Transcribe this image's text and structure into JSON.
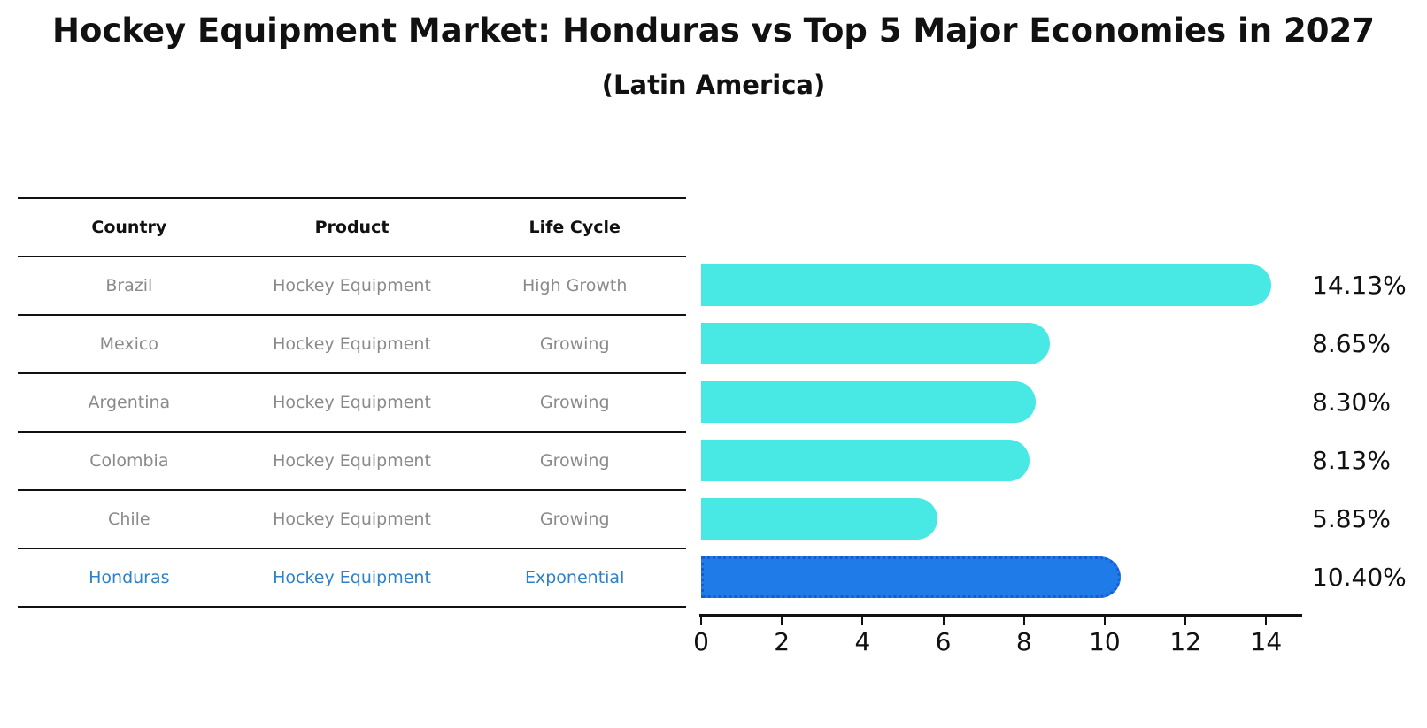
{
  "title": "Hockey Equipment Market: Honduras vs Top 5 Major Economies in 2027",
  "subtitle": "(Latin America)",
  "table": {
    "headers": {
      "country": "Country",
      "product": "Product",
      "life_cycle": "Life Cycle"
    },
    "rows": [
      {
        "country": "Brazil",
        "product": "Hockey Equipment",
        "life_cycle": "High Growth",
        "highlight": false
      },
      {
        "country": "Mexico",
        "product": "Hockey Equipment",
        "life_cycle": "Growing",
        "highlight": false
      },
      {
        "country": "Argentina",
        "product": "Hockey Equipment",
        "life_cycle": "Growing",
        "highlight": false
      },
      {
        "country": "Colombia",
        "product": "Hockey Equipment",
        "life_cycle": "Growing",
        "highlight": false
      },
      {
        "country": "Chile",
        "product": "Hockey Equipment",
        "life_cycle": "Growing",
        "highlight": false
      },
      {
        "country": "Honduras",
        "product": "Hockey Equipment",
        "life_cycle": "Exponential",
        "highlight": true
      }
    ]
  },
  "chart_data": {
    "type": "bar",
    "orientation": "horizontal",
    "title": "Hockey Equipment Market: Honduras vs Top 5 Major Economies in 2027 (Latin America)",
    "categories": [
      "Brazil",
      "Mexico",
      "Argentina",
      "Colombia",
      "Chile",
      "Honduras"
    ],
    "values": [
      14.13,
      8.65,
      8.3,
      8.13,
      5.85,
      10.4
    ],
    "value_labels": [
      "14.13%",
      "8.65%",
      "8.30%",
      "8.13%",
      "5.85%",
      "10.40%"
    ],
    "highlight_index": 5,
    "xlim": [
      0,
      14.87
    ],
    "x_ticks": [
      0,
      2,
      4,
      6,
      8,
      10,
      12,
      14
    ],
    "x_tick_labels": [
      "0",
      "2",
      "4",
      "6",
      "8",
      "10",
      "12",
      "14"
    ],
    "grid": false,
    "legend": false
  },
  "colors": {
    "bar": "#48e8e5",
    "highlight_bar": "#1e7be8",
    "highlight_border": "#1a5ad2",
    "highlight_text": "#2e80c8",
    "row_text": "#8a8a8a",
    "axis": "#111111"
  }
}
